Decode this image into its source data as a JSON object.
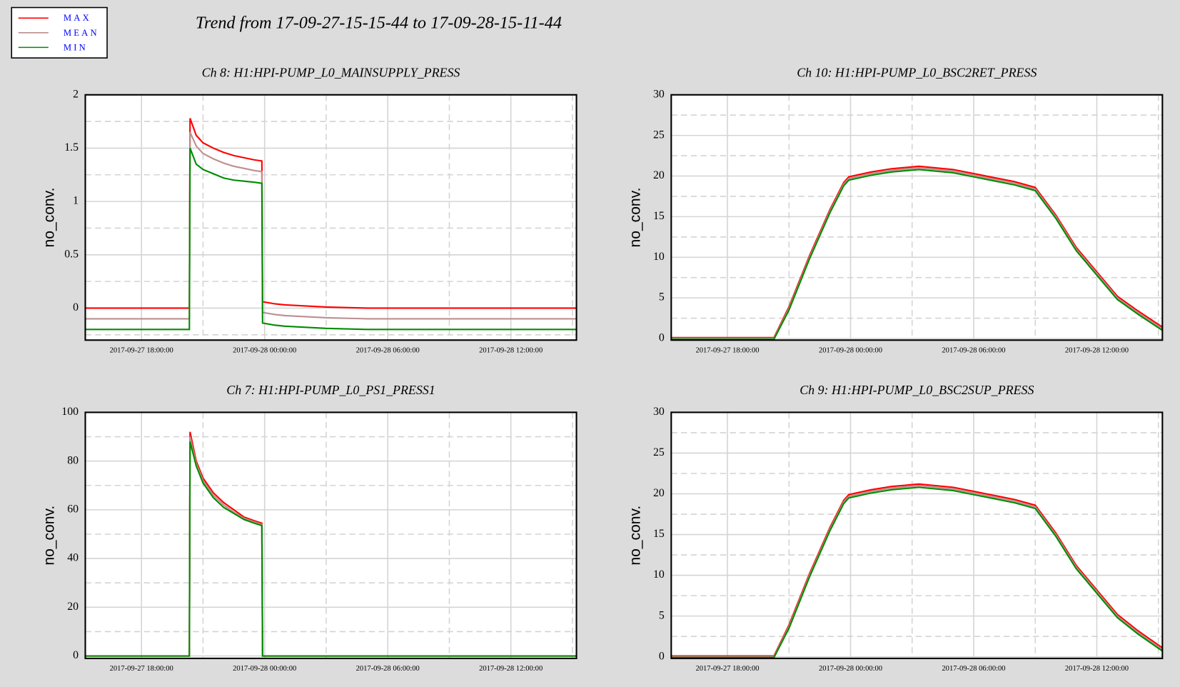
{
  "title": "Trend from 17-09-27-15-15-44 to 17-09-28-15-11-44",
  "chart_data": [
    {
      "type": "line",
      "title": "Ch 8: H1:HPI-PUMP_L0_MAINSUPPLY_PRESS",
      "y_label": "no_conv.",
      "grid": true,
      "x": [
        "2017-09-27 15:15:44",
        "2017-09-27 16:00:00",
        "2017-09-27 17:00:00",
        "2017-09-27 18:00:00",
        "2017-09-27 19:00:00",
        "2017-09-27 20:00:00",
        "2017-09-27 20:20:00",
        "2017-09-27 20:22:00",
        "2017-09-27 20:40:00",
        "2017-09-27 21:00:00",
        "2017-09-27 21:30:00",
        "2017-09-27 22:00:00",
        "2017-09-27 22:30:00",
        "2017-09-27 23:00:00",
        "2017-09-27 23:30:00",
        "2017-09-27 23:52:00",
        "2017-09-27 23:54:00",
        "2017-09-28 00:30:00",
        "2017-09-28 01:00:00",
        "2017-09-28 02:00:00",
        "2017-09-28 03:00:00",
        "2017-09-28 05:00:00",
        "2017-09-28 07:00:00",
        "2017-09-28 09:00:00",
        "2017-09-28 11:00:00",
        "2017-09-28 13:00:00",
        "2017-09-28 15:11:44"
      ],
      "xlim": [
        "2017-09-27 15:15:44",
        "2017-09-28 15:11:44"
      ],
      "xticks": [
        "2017-09-27 18:00:00",
        "2017-09-28 00:00:00",
        "2017-09-28 06:00:00",
        "2017-09-28 12:00:00"
      ],
      "minor_xticks": [
        "2017-09-27 21:00:00",
        "2017-09-28 03:00:00",
        "2017-09-28 09:00:00",
        "2017-09-28 15:00:00"
      ],
      "ylim": [
        -0.3,
        2
      ],
      "yticks": [
        0,
        0.5,
        1,
        1.5,
        2
      ],
      "minor_yticks": [
        -0.25,
        0.25,
        0.75,
        1.25,
        1.75
      ],
      "series": [
        {
          "name": "MAX",
          "color": "#ff0000",
          "values": [
            0,
            0,
            0,
            0,
            0,
            0,
            0,
            1.78,
            1.62,
            1.55,
            1.5,
            1.46,
            1.43,
            1.41,
            1.39,
            1.38,
            0.06,
            0.04,
            0.03,
            0.02,
            0.01,
            0,
            0,
            0,
            0,
            0,
            0
          ]
        },
        {
          "name": "MEAN",
          "color": "#bc8f8f",
          "values": [
            -0.1,
            -0.1,
            -0.1,
            -0.1,
            -0.1,
            -0.1,
            -0.1,
            1.65,
            1.52,
            1.45,
            1.4,
            1.36,
            1.33,
            1.31,
            1.29,
            1.28,
            -0.04,
            -0.06,
            -0.07,
            -0.08,
            -0.09,
            -0.1,
            -0.1,
            -0.1,
            -0.1,
            -0.1,
            -0.1
          ]
        },
        {
          "name": "MIN",
          "color": "#008c00",
          "values": [
            -0.2,
            -0.2,
            -0.2,
            -0.2,
            -0.2,
            -0.2,
            -0.2,
            1.5,
            1.35,
            1.3,
            1.26,
            1.22,
            1.2,
            1.19,
            1.18,
            1.17,
            -0.14,
            -0.16,
            -0.17,
            -0.18,
            -0.19,
            -0.2,
            -0.2,
            -0.2,
            -0.2,
            -0.2,
            -0.2
          ]
        }
      ]
    },
    {
      "type": "line",
      "title": "Ch 10: H1:HPI-PUMP_L0_BSC2RET_PRESS",
      "y_label": "no_conv.",
      "grid": true,
      "x": [
        "2017-09-27 15:15:44",
        "2017-09-27 17:00:00",
        "2017-09-27 19:00:00",
        "2017-09-27 20:16:00",
        "2017-09-27 21:00:00",
        "2017-09-27 22:00:00",
        "2017-09-27 23:00:00",
        "2017-09-27 23:40:00",
        "2017-09-27 23:55:00",
        "2017-09-28 01:00:00",
        "2017-09-28 02:00:00",
        "2017-09-28 03:20:00",
        "2017-09-28 05:00:00",
        "2017-09-28 06:00:00",
        "2017-09-28 07:00:00",
        "2017-09-28 08:00:00",
        "2017-09-28 09:00:00",
        "2017-09-28 10:00:00",
        "2017-09-28 11:00:00",
        "2017-09-28 12:00:00",
        "2017-09-28 13:00:00",
        "2017-09-28 14:00:00",
        "2017-09-28 15:11:44"
      ],
      "xlim": [
        "2017-09-27 15:15:44",
        "2017-09-28 15:11:44"
      ],
      "xticks": [
        "2017-09-27 18:00:00",
        "2017-09-28 00:00:00",
        "2017-09-28 06:00:00",
        "2017-09-28 12:00:00"
      ],
      "minor_xticks": [
        "2017-09-27 21:00:00",
        "2017-09-28 03:00:00",
        "2017-09-28 09:00:00",
        "2017-09-28 15:00:00"
      ],
      "ylim": [
        -0.2,
        30
      ],
      "yticks": [
        0,
        5,
        10,
        15,
        20,
        25,
        30
      ],
      "minor_yticks": [
        2.5,
        7.5,
        12.5,
        17.5,
        22.5,
        27.5
      ],
      "series": [
        {
          "name": "MAX",
          "color": "#ff0000",
          "values": [
            0.1,
            0.1,
            0.1,
            0.1,
            3.9,
            10.2,
            15.9,
            19.2,
            19.9,
            20.5,
            20.9,
            21.2,
            20.8,
            20.3,
            19.8,
            19.3,
            18.6,
            15.2,
            11.2,
            8.2,
            5.2,
            3.4,
            1.4
          ]
        },
        {
          "name": "MEAN",
          "color": "#bc8f8f",
          "values": [
            0,
            0,
            0,
            0,
            3.7,
            10,
            15.7,
            19,
            19.7,
            20.3,
            20.7,
            21,
            20.6,
            20.1,
            19.6,
            19.1,
            18.4,
            15,
            11,
            8,
            5,
            3.2,
            1.2
          ]
        },
        {
          "name": "MIN",
          "color": "#008c00",
          "values": [
            -0.1,
            -0.1,
            -0.1,
            -0.1,
            3.5,
            9.8,
            15.5,
            18.8,
            19.5,
            20.1,
            20.5,
            20.8,
            20.4,
            19.9,
            19.4,
            18.9,
            18.2,
            14.8,
            10.8,
            7.8,
            4.8,
            3.0,
            1.0
          ]
        }
      ]
    },
    {
      "type": "line",
      "title": "Ch 7: H1:HPI-PUMP_L0_PS1_PRESS1",
      "y_label": "no_conv.",
      "grid": true,
      "x": [
        "2017-09-27 15:15:44",
        "2017-09-27 16:00:00",
        "2017-09-27 17:00:00",
        "2017-09-27 18:00:00",
        "2017-09-27 19:00:00",
        "2017-09-27 20:00:00",
        "2017-09-27 20:20:00",
        "2017-09-27 20:22:00",
        "2017-09-27 20:40:00",
        "2017-09-27 21:00:00",
        "2017-09-27 21:30:00",
        "2017-09-27 22:00:00",
        "2017-09-27 22:30:00",
        "2017-09-27 23:00:00",
        "2017-09-27 23:30:00",
        "2017-09-27 23:52:00",
        "2017-09-27 23:54:00",
        "2017-09-28 00:30:00",
        "2017-09-28 01:00:00",
        "2017-09-28 02:00:00",
        "2017-09-28 03:00:00",
        "2017-09-28 05:00:00",
        "2017-09-28 07:00:00",
        "2017-09-28 09:00:00",
        "2017-09-28 11:00:00",
        "2017-09-28 13:00:00",
        "2017-09-28 15:11:44"
      ],
      "xlim": [
        "2017-09-27 15:15:44",
        "2017-09-28 15:11:44"
      ],
      "xticks": [
        "2017-09-27 18:00:00",
        "2017-09-28 00:00:00",
        "2017-09-28 06:00:00",
        "2017-09-28 12:00:00"
      ],
      "minor_xticks": [
        "2017-09-27 21:00:00",
        "2017-09-28 03:00:00",
        "2017-09-28 09:00:00",
        "2017-09-28 15:00:00"
      ],
      "ylim": [
        -1,
        100
      ],
      "yticks": [
        0,
        20,
        40,
        60,
        80,
        100
      ],
      "minor_yticks": [
        10,
        30,
        50,
        70,
        90
      ],
      "series": [
        {
          "name": "MAX",
          "color": "#ff0000",
          "values": [
            0,
            0,
            0,
            0,
            0,
            0,
            0,
            92,
            80,
            73,
            67,
            63,
            60,
            57,
            55.5,
            54.5,
            0,
            0,
            0,
            0,
            0,
            0,
            0,
            0,
            0,
            0,
            0
          ]
        },
        {
          "name": "MEAN",
          "color": "#bc8f8f",
          "values": [
            0,
            0,
            0,
            0,
            0,
            0,
            0,
            90,
            79,
            72,
            66,
            62,
            59,
            56.5,
            55,
            54,
            0,
            0,
            0,
            0,
            0,
            0,
            0,
            0,
            0,
            0,
            0
          ]
        },
        {
          "name": "MIN",
          "color": "#008c00",
          "values": [
            0,
            0,
            0,
            0,
            0,
            0,
            0,
            88,
            78,
            71,
            65,
            61,
            58.5,
            56,
            54.5,
            53.5,
            0,
            0,
            0,
            0,
            0,
            0,
            0,
            0,
            0,
            0,
            0
          ]
        }
      ]
    },
    {
      "type": "line",
      "title": "Ch 9: H1:HPI-PUMP_L0_BSC2SUP_PRESS",
      "y_label": "no_conv.",
      "grid": true,
      "x": [
        "2017-09-27 15:15:44",
        "2017-09-27 17:00:00",
        "2017-09-27 19:00:00",
        "2017-09-27 20:16:00",
        "2017-09-27 21:00:00",
        "2017-09-27 22:00:00",
        "2017-09-27 23:00:00",
        "2017-09-27 23:40:00",
        "2017-09-27 23:55:00",
        "2017-09-28 01:00:00",
        "2017-09-28 02:00:00",
        "2017-09-28 03:20:00",
        "2017-09-28 05:00:00",
        "2017-09-28 06:00:00",
        "2017-09-28 07:00:00",
        "2017-09-28 08:00:00",
        "2017-09-28 09:00:00",
        "2017-09-28 10:00:00",
        "2017-09-28 11:00:00",
        "2017-09-28 12:00:00",
        "2017-09-28 13:00:00",
        "2017-09-28 14:00:00",
        "2017-09-28 15:11:44"
      ],
      "xlim": [
        "2017-09-27 15:15:44",
        "2017-09-28 15:11:44"
      ],
      "xticks": [
        "2017-09-27 18:00:00",
        "2017-09-28 00:00:00",
        "2017-09-28 06:00:00",
        "2017-09-28 12:00:00"
      ],
      "minor_xticks": [
        "2017-09-27 21:00:00",
        "2017-09-28 03:00:00",
        "2017-09-28 09:00:00",
        "2017-09-28 15:00:00"
      ],
      "ylim": [
        -0.2,
        30
      ],
      "yticks": [
        0,
        5,
        10,
        15,
        20,
        25,
        30
      ],
      "minor_yticks": [
        2.5,
        7.5,
        12.5,
        17.5,
        22.5,
        27.5
      ],
      "series": [
        {
          "name": "MAX",
          "color": "#ff0000",
          "values": [
            0.1,
            0.1,
            0.1,
            0.1,
            3.9,
            10.2,
            15.9,
            19.2,
            19.9,
            20.5,
            20.9,
            21.2,
            20.8,
            20.3,
            19.8,
            19.3,
            18.6,
            15.2,
            11.2,
            8.2,
            5.2,
            3.2,
            1.1
          ]
        },
        {
          "name": "MEAN",
          "color": "#bc8f8f",
          "values": [
            0,
            0,
            0,
            0,
            3.7,
            10,
            15.7,
            19,
            19.7,
            20.3,
            20.7,
            21,
            20.6,
            20.1,
            19.6,
            19.1,
            18.4,
            15,
            11,
            8,
            5,
            3.0,
            0.9
          ]
        },
        {
          "name": "MIN",
          "color": "#008c00",
          "values": [
            -0.1,
            -0.1,
            -0.1,
            -0.1,
            3.5,
            9.8,
            15.5,
            18.8,
            19.5,
            20.1,
            20.5,
            20.8,
            20.4,
            19.9,
            19.4,
            18.9,
            18.2,
            14.8,
            10.8,
            7.8,
            4.8,
            2.8,
            0.7
          ]
        }
      ]
    }
  ]
}
